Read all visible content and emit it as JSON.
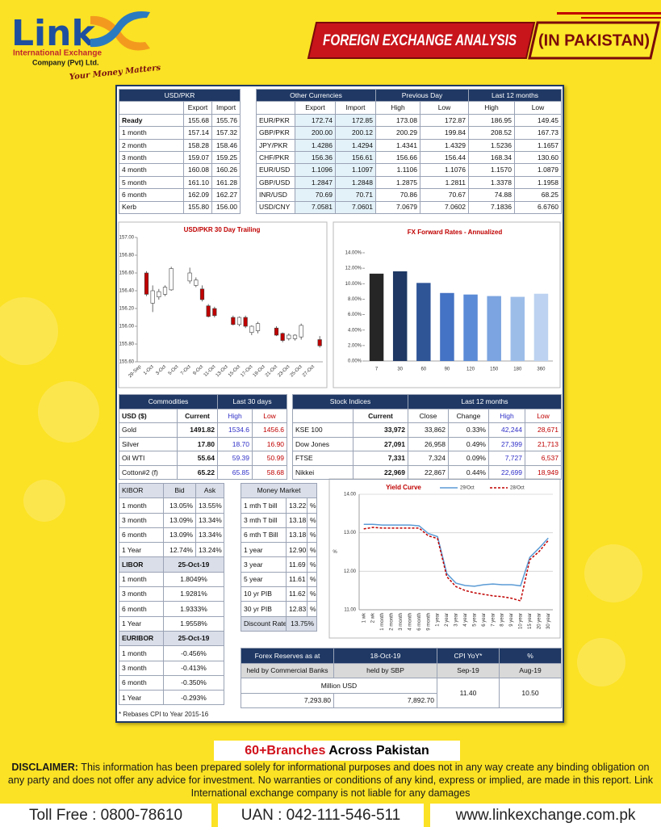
{
  "header": {
    "logo": "Link",
    "company_line1": "International Exchange",
    "company_line2": "Company (Pvt) Ltd.",
    "tagline": "Your Money Matters",
    "banner_title": "FOREIGN EXCHANGE ANALYSIS",
    "banner_subtitle": "(IN PAKISTAN)"
  },
  "usd_pkr": {
    "title": "USD/PKR",
    "columns": [
      "Export",
      "Import"
    ],
    "rows": [
      [
        "Ready",
        "155.68",
        "155.76"
      ],
      [
        "1 month",
        "157.14",
        "157.32"
      ],
      [
        "2 month",
        "158.28",
        "158.46"
      ],
      [
        "3 month",
        "159.07",
        "159.25"
      ],
      [
        "4 month",
        "160.08",
        "160.26"
      ],
      [
        "5 month",
        "161.10",
        "161.28"
      ],
      [
        "6 month",
        "162.09",
        "162.27"
      ],
      [
        "Kerb",
        "155.80",
        "156.00"
      ]
    ]
  },
  "other_currencies": {
    "groups": [
      "Other Currencies",
      "Previous Day",
      "Last 12 months"
    ],
    "columns": [
      "Export",
      "Import",
      "High",
      "Low",
      "High",
      "Low"
    ],
    "rows": [
      [
        "EUR/PKR",
        "172.74",
        "172.85",
        "173.08",
        "172.87",
        "186.95",
        "149.45"
      ],
      [
        "GBP/PKR",
        "200.00",
        "200.12",
        "200.29",
        "199.84",
        "208.52",
        "167.73"
      ],
      [
        "JPY/PKR",
        "1.4286",
        "1.4294",
        "1.4341",
        "1.4329",
        "1.5236",
        "1.1657"
      ],
      [
        "CHF/PKR",
        "156.36",
        "156.61",
        "156.66",
        "156.44",
        "168.34",
        "130.60"
      ],
      [
        "EUR/USD",
        "1.1096",
        "1.1097",
        "1.1106",
        "1.1076",
        "1.1570",
        "1.0879"
      ],
      [
        "GBP/USD",
        "1.2847",
        "1.2848",
        "1.2875",
        "1.2811",
        "1.3378",
        "1.1958"
      ],
      [
        "INR/USD",
        "70.69",
        "70.71",
        "70.86",
        "70.67",
        "74.88",
        "68.25"
      ],
      [
        "USD/CNY",
        "7.0581",
        "7.0601",
        "7.0679",
        "7.0602",
        "7.1836",
        "6.6760"
      ]
    ]
  },
  "chart_data": [
    {
      "type": "candlestick",
      "title": "USD/PKR 30 Day Trailing",
      "categories": [
        "29-Sep",
        null,
        "1-Oct",
        null,
        "3-Oct",
        null,
        "5-Oct",
        null,
        "7-Oct",
        null,
        "9-Oct",
        null,
        "11-Oct",
        null,
        "13-Oct",
        null,
        "15-Oct",
        null,
        "17-Oct",
        null,
        "19-Oct",
        null,
        "21-Oct",
        null,
        "23-Oct",
        null,
        "25-Oct",
        null,
        "27-Oct",
        null
      ],
      "open": [
        null,
        156.6,
        156.26,
        156.33,
        156.36,
        156.41,
        null,
        null,
        156.51,
        156.46,
        156.42,
        156.23,
        156.2,
        null,
        null,
        156.1,
        156.02,
        156.1,
        155.93,
        155.95,
        null,
        null,
        155.98,
        155.92,
        155.86,
        155.86,
        155.88,
        null,
        null,
        155.85
      ],
      "high": [
        null,
        156.62,
        156.46,
        156.42,
        156.46,
        156.67,
        null,
        null,
        156.66,
        156.55,
        156.46,
        156.25,
        156.22,
        null,
        null,
        156.12,
        156.11,
        156.12,
        156.01,
        156.05,
        null,
        null,
        156.0,
        155.93,
        155.92,
        155.91,
        156.03,
        null,
        null,
        155.89
      ],
      "low": [
        null,
        156.34,
        156.16,
        156.3,
        156.34,
        156.4,
        null,
        null,
        156.48,
        156.44,
        156.28,
        156.1,
        156.1,
        null,
        null,
        156.01,
        156.0,
        155.98,
        155.9,
        155.92,
        null,
        null,
        155.89,
        155.82,
        155.84,
        155.84,
        155.85,
        null,
        null,
        155.76
      ],
      "close": [
        null,
        156.36,
        156.4,
        156.39,
        156.44,
        156.65,
        null,
        null,
        156.6,
        156.52,
        156.3,
        156.11,
        156.12,
        null,
        null,
        156.02,
        156.1,
        156.0,
        156.0,
        156.03,
        null,
        null,
        155.9,
        155.84,
        155.9,
        155.9,
        156.01,
        null,
        null,
        155.78
      ],
      "up_color": "#ffffff",
      "down_color": "#c00000",
      "ylim": [
        155.6,
        157
      ],
      "yticks": [
        {
          "value": 155.6,
          "label": "155.60"
        },
        {
          "value": 155.8,
          "label": "155.80"
        },
        {
          "value": 156,
          "label": "156.00"
        },
        {
          "value": 156.2,
          "label": "156.20"
        },
        {
          "value": 156.4,
          "label": "156.40"
        },
        {
          "value": 156.6,
          "label": "156.60"
        },
        {
          "value": 156.8,
          "label": "156.80"
        },
        {
          "value": 157,
          "label": "157.00"
        }
      ]
    },
    {
      "type": "bar",
      "title": "FX Forward Rates - Annualized",
      "categories": [
        "7",
        "30",
        "60",
        "90",
        "120",
        "150",
        "180",
        "360"
      ],
      "values": [
        11.3,
        11.6,
        10.1,
        8.8,
        8.6,
        8.4,
        8.3,
        8.7
      ],
      "colors": [
        "#262626",
        "#1f3864",
        "#2f5597",
        "#4472c4",
        "#5b8bd6",
        "#7ba4e0",
        "#9dbde9",
        "#bcd2f0"
      ],
      "ylim": [
        0,
        14
      ],
      "yticks": [
        {
          "value": 0,
          "label": "0.00%"
        },
        {
          "value": 2,
          "label": "2.00%"
        },
        {
          "value": 4,
          "label": "4.00%"
        },
        {
          "value": 6,
          "label": "6.00%"
        },
        {
          "value": 8,
          "label": "8.00%"
        },
        {
          "value": 10,
          "label": "10.00%"
        },
        {
          "value": 12,
          "label": "12.00%"
        },
        {
          "value": 14,
          "label": "14.00%"
        }
      ]
    },
    {
      "type": "line",
      "title": "Yield Curve",
      "y_label": "%",
      "legend": "top",
      "grid": true,
      "categories": [
        "1 wk",
        "2 wk",
        "1 month",
        "2 month",
        "3 month",
        "4 month",
        "6 month",
        "9 month",
        "1 year",
        "2 year",
        "3 year",
        "4 year",
        "5 year",
        "6 year",
        "7 year",
        "8 year",
        "9 year",
        "10 year",
        "15 year",
        "20 year",
        "30 year"
      ],
      "series": [
        {
          "name": "29/Oct",
          "color": "#5b9bd5",
          "dashed": false,
          "values": [
            13.22,
            13.22,
            13.2,
            13.2,
            13.2,
            13.2,
            13.18,
            12.98,
            12.9,
            11.94,
            11.69,
            11.63,
            11.61,
            11.65,
            11.67,
            11.65,
            11.65,
            11.62,
            12.36,
            12.6,
            12.86
          ]
        },
        {
          "name": "28/Oct",
          "color": "#c00000",
          "dashed": true,
          "values": [
            13.1,
            13.14,
            13.12,
            13.12,
            13.12,
            13.12,
            13.12,
            12.92,
            12.85,
            11.86,
            11.6,
            11.5,
            11.44,
            11.4,
            11.36,
            11.34,
            11.3,
            11.23,
            12.3,
            12.51,
            12.8
          ]
        }
      ],
      "ylim": [
        11,
        14
      ],
      "yticks": [
        {
          "value": 11,
          "label": "11.00"
        },
        {
          "value": 12,
          "label": "12.00"
        },
        {
          "value": 13,
          "label": "13.00"
        },
        {
          "value": 14,
          "label": "14.00"
        }
      ]
    }
  ],
  "commodities": {
    "title": "Commodities",
    "period": "Last 30 days",
    "columns": [
      "USD ($)",
      "Current",
      "High",
      "Low"
    ],
    "rows": [
      [
        "Gold",
        "1491.82",
        "1534.6",
        "1456.6"
      ],
      [
        "Silver",
        "17.80",
        "18.70",
        "16.90"
      ],
      [
        "Oil WTI",
        "55.64",
        "59.39",
        "50.99"
      ],
      [
        "Cotton#2 (f)",
        "65.22",
        "65.85",
        "58.68"
      ]
    ]
  },
  "stock_indices": {
    "title": "Stock Indices",
    "period": "Last 12 months",
    "columns": [
      "Current",
      "Close",
      "Change",
      "High",
      "Low"
    ],
    "rows": [
      [
        "KSE 100",
        "33,972",
        "33,862",
        "0.33%",
        "42,244",
        "28,671"
      ],
      [
        "Dow Jones",
        "27,091",
        "26,958",
        "0.49%",
        "27,399",
        "21,713"
      ],
      [
        "FTSE",
        "7,331",
        "7,324",
        "0.09%",
        "7,727",
        "6,537"
      ],
      [
        "Nikkei",
        "22,969",
        "22,867",
        "0.44%",
        "22,699",
        "18,949"
      ]
    ]
  },
  "kibor": {
    "columns": [
      "KIBOR",
      "Bid",
      "Ask"
    ],
    "rows": [
      [
        "1 month",
        "13.05%",
        "13.55%"
      ],
      [
        "3 month",
        "13.09%",
        "13.34%"
      ],
      [
        "6 month",
        "13.09%",
        "13.34%"
      ],
      [
        "1 Year",
        "12.74%",
        "13.24%"
      ]
    ]
  },
  "libor": {
    "title": "LIBOR",
    "date": "25-Oct-19",
    "rows": [
      [
        "1 month",
        "1.8049%"
      ],
      [
        "3 month",
        "1.9281%"
      ],
      [
        "6 month",
        "1.9333%"
      ],
      [
        "1 Year",
        "1.9558%"
      ]
    ]
  },
  "euribor": {
    "title": "EURIBOR",
    "date": "25-Oct-19",
    "rows": [
      [
        "1 month",
        "-0.456%"
      ],
      [
        "3 month",
        "-0.413%"
      ],
      [
        "6 month",
        "-0.350%"
      ],
      [
        "1 Year",
        "-0.293%"
      ]
    ]
  },
  "money_market": {
    "title": "Money Market",
    "rows": [
      [
        "1 mth T bill",
        "13.22",
        "%"
      ],
      [
        "3 mth T bill",
        "13.18",
        "%"
      ],
      [
        "6 mth T Bill",
        "13.18",
        "%"
      ],
      [
        "1 year",
        "12.90",
        "%"
      ],
      [
        "3 year",
        "11.69",
        "%"
      ],
      [
        "5 year",
        "11.61",
        "%"
      ],
      [
        "10 yr PIB",
        "11.62",
        "%"
      ],
      [
        "30 yr PIB",
        "12.83",
        "%"
      ]
    ],
    "discount_rate": [
      "Discount Rate",
      "13.75%"
    ]
  },
  "forex_reserves": {
    "title": "Forex Reserves  as at",
    "date": "18-Oct-19",
    "columns": [
      "held by Commercial Banks",
      "held by SBP"
    ],
    "unit": "Million USD",
    "values": [
      "7,293.80",
      "7,892.70"
    ]
  },
  "cpi": {
    "title": "CPI YoY*",
    "unit": "%",
    "columns": [
      "Sep-19",
      "Aug-19"
    ],
    "values": [
      "11.40",
      "10.50"
    ]
  },
  "footnote": "* Rebases CPI to Year 2015-16",
  "footer": {
    "branches_highlight": "60+Branches",
    "branches_rest": "Across Pakistan",
    "disclaimer_label": "DISCLAIMER:",
    "disclaimer_text": "This information has been prepared solely for informational purposes and does not in any way create any binding obligation on any party and does not offer any advice for investment. No warranties or conditions of any kind, express or implied, are made in this report. Link International exchange company is not liable for any damages",
    "toll_free": "Toll Free : 0800-78610",
    "uan": "UAN : 042-111-546-511",
    "website": "www.linkexchange.com.pk"
  }
}
